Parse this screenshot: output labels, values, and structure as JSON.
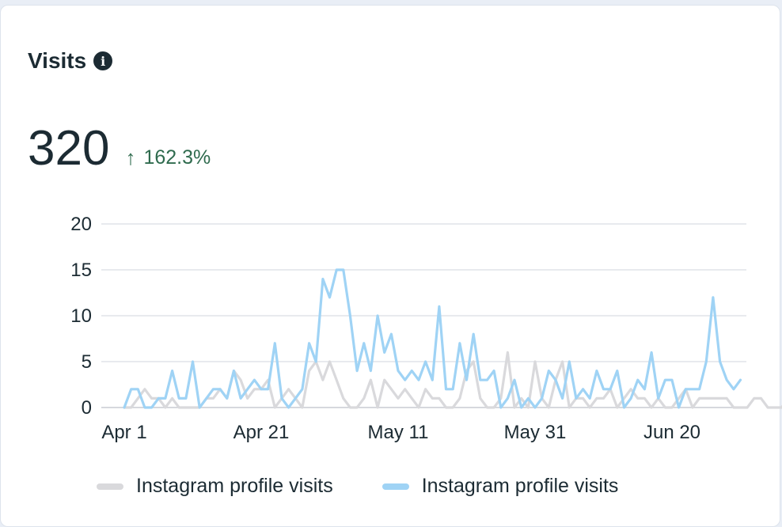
{
  "card": {
    "title": "Visits",
    "info_icon": "info-icon",
    "metric_value": "320",
    "delta_text": "162.3%",
    "delta_icon": "arrow-up-icon",
    "delta_color": "#2f6b4e"
  },
  "chart_data": {
    "type": "line",
    "ylim": [
      0,
      20
    ],
    "y_ticks": [
      0,
      5,
      10,
      15,
      20
    ],
    "x_tick_labels": [
      "Apr 1",
      "Apr 21",
      "May 11",
      "May 31",
      "Jun 20"
    ],
    "x_tick_days": [
      0,
      20,
      40,
      60,
      80
    ],
    "grid": true,
    "legend_placement": "bottom",
    "series": [
      {
        "name": "Instagram profile visits",
        "color": "#d9d9dc",
        "values": [
          0,
          0,
          1,
          2,
          1,
          1,
          0,
          1,
          0,
          0,
          0,
          0,
          1,
          1,
          2,
          1,
          4,
          3,
          1,
          2,
          2,
          3,
          0,
          1,
          2,
          1,
          0,
          4,
          5,
          3,
          5,
          3,
          1,
          0,
          0,
          1,
          3,
          0,
          3,
          2,
          1,
          2,
          1,
          0,
          2,
          1,
          1,
          0,
          0,
          1,
          4,
          5,
          1,
          0,
          0,
          1,
          6,
          0,
          1,
          0,
          5,
          1,
          0,
          3,
          5,
          0,
          1,
          1,
          0,
          1,
          1,
          2,
          0,
          1,
          2,
          1,
          1,
          0,
          1,
          0,
          0,
          1,
          2,
          0,
          1,
          1,
          1,
          1,
          1,
          0,
          0,
          0,
          1,
          1,
          0,
          0,
          0,
          1
        ]
      },
      {
        "name": "Instagram profile visits",
        "color": "#9fd3f5",
        "values": [
          0,
          2,
          2,
          0,
          0,
          1,
          1,
          4,
          1,
          1,
          5,
          0,
          1,
          2,
          2,
          1,
          4,
          1,
          2,
          3,
          2,
          2,
          7,
          1,
          0,
          1,
          2,
          7,
          5,
          14,
          12,
          15,
          15,
          10,
          4,
          7,
          4,
          10,
          6,
          8,
          4,
          3,
          4,
          3,
          5,
          3,
          11,
          2,
          2,
          7,
          3,
          8,
          3,
          3,
          4,
          0,
          1,
          3,
          0,
          1,
          0,
          1,
          4,
          3,
          1,
          5,
          1,
          2,
          1,
          4,
          2,
          2,
          4,
          0,
          1,
          3,
          2,
          6,
          1,
          3,
          3,
          0,
          2,
          2,
          2,
          5,
          12,
          5,
          3,
          2,
          3
        ]
      }
    ]
  }
}
